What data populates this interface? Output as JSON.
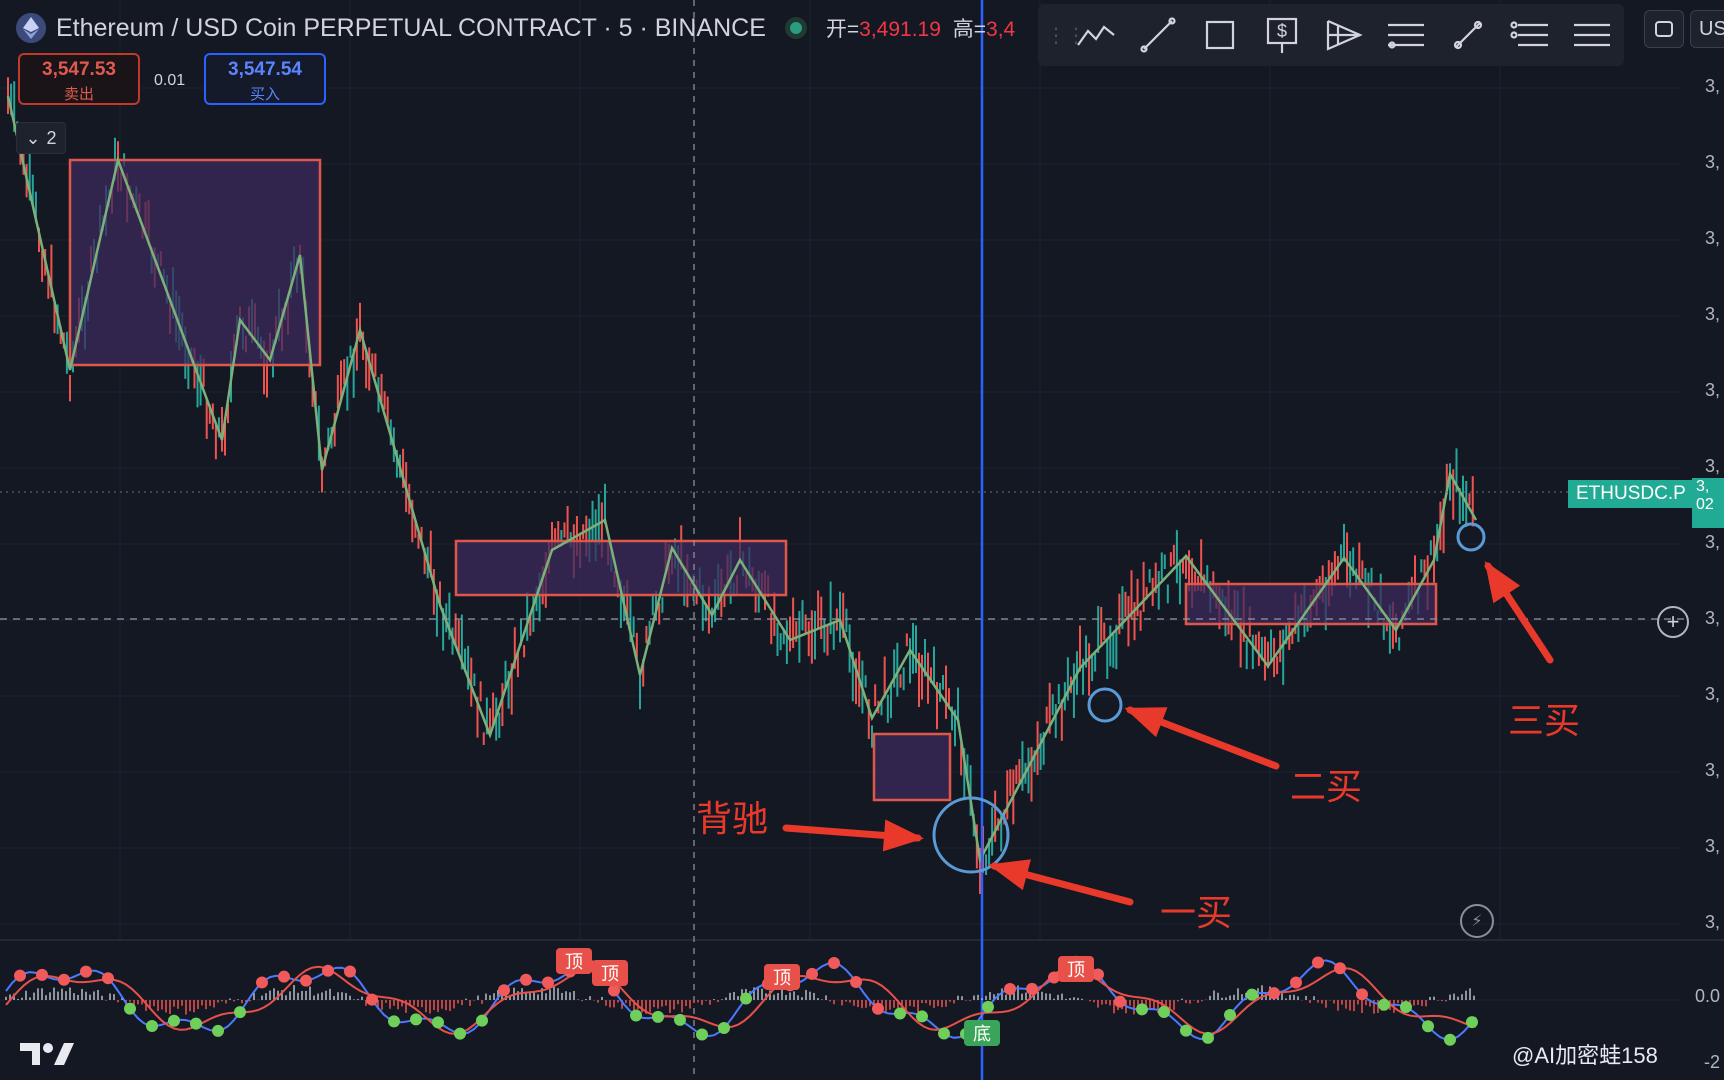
{
  "header": {
    "title": "Ethereum / USD Coin PERPETUAL CONTRACT · 5 · BINANCE",
    "open_label": "开=",
    "open_value": "3,491.19",
    "high_label": "高=",
    "high_value": "3,4"
  },
  "quote": {
    "sell_price": "3,547.53",
    "sell_label": "卖出",
    "spread": "0.01",
    "buy_price": "3,547.54",
    "buy_label": "买入"
  },
  "indicator_toggle": {
    "count": "2"
  },
  "toolbar": {
    "tools": [
      "trend-line-path-icon",
      "trend-line-icon",
      "rectangle-icon",
      "price-range-icon",
      "pitchfork-icon",
      "fib-retracement-icon",
      "brush-icon",
      "fib-extension-icon",
      "menu-icon"
    ],
    "right_label": "US"
  },
  "price_axis": {
    "ticks": [
      "3,",
      "3,",
      "3,",
      "3,",
      "3,",
      "3,",
      "3,",
      "3,",
      "3,",
      "3,",
      "3,",
      "3,"
    ],
    "indicator_ticks": [
      "0.0",
      "-2"
    ]
  },
  "symbol_tag": {
    "label": "ETHUSDC.P",
    "price_top": "3,",
    "price_bottom": "02"
  },
  "crosshair_price": "3,",
  "annotations": {
    "divergence": "背驰",
    "buy1": "一买",
    "buy2": "二买",
    "buy3": "三买"
  },
  "signals": {
    "top": "顶",
    "bottom": "底"
  },
  "watermark": "@AI加密蛙158",
  "colors": {
    "background": "#141823",
    "bull": "#26a69a",
    "bear": "#ef5350",
    "zone_fill": "#3b2a5c",
    "zone_border": "#e0574a",
    "stroke_line": "#7cb07a",
    "annotation": "#e8392b",
    "circle": "#5b9bd5",
    "vertical_line": "#2962ff",
    "signal_top": "#e8514a",
    "signal_bottom": "#3aa55a"
  }
}
